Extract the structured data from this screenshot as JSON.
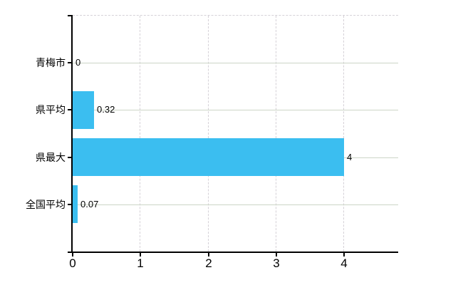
{
  "chart_data": {
    "type": "bar",
    "orientation": "horizontal",
    "title": "",
    "xlabel": "",
    "ylabel": "",
    "categories": [
      "青梅市",
      "県平均",
      "県最大",
      "全国平均"
    ],
    "values": [
      0,
      0.32,
      4,
      0.07
    ],
    "value_labels": [
      "0",
      "0.32",
      "4",
      "0.07"
    ],
    "x_tick_labels": [
      "0",
      "1",
      "2",
      "3",
      "4"
    ],
    "x_tick_values": [
      0,
      1,
      2,
      3,
      4
    ],
    "xlim": [
      0,
      4.8
    ],
    "grid": "on",
    "legend": "none",
    "colors": {
      "bar": "#3bbef0",
      "axis": "#000000",
      "gridline_solid": "#ccd5c7",
      "gridline_dashed": "#d5d1d7",
      "text": "#000000",
      "background": "#ffffff"
    }
  }
}
